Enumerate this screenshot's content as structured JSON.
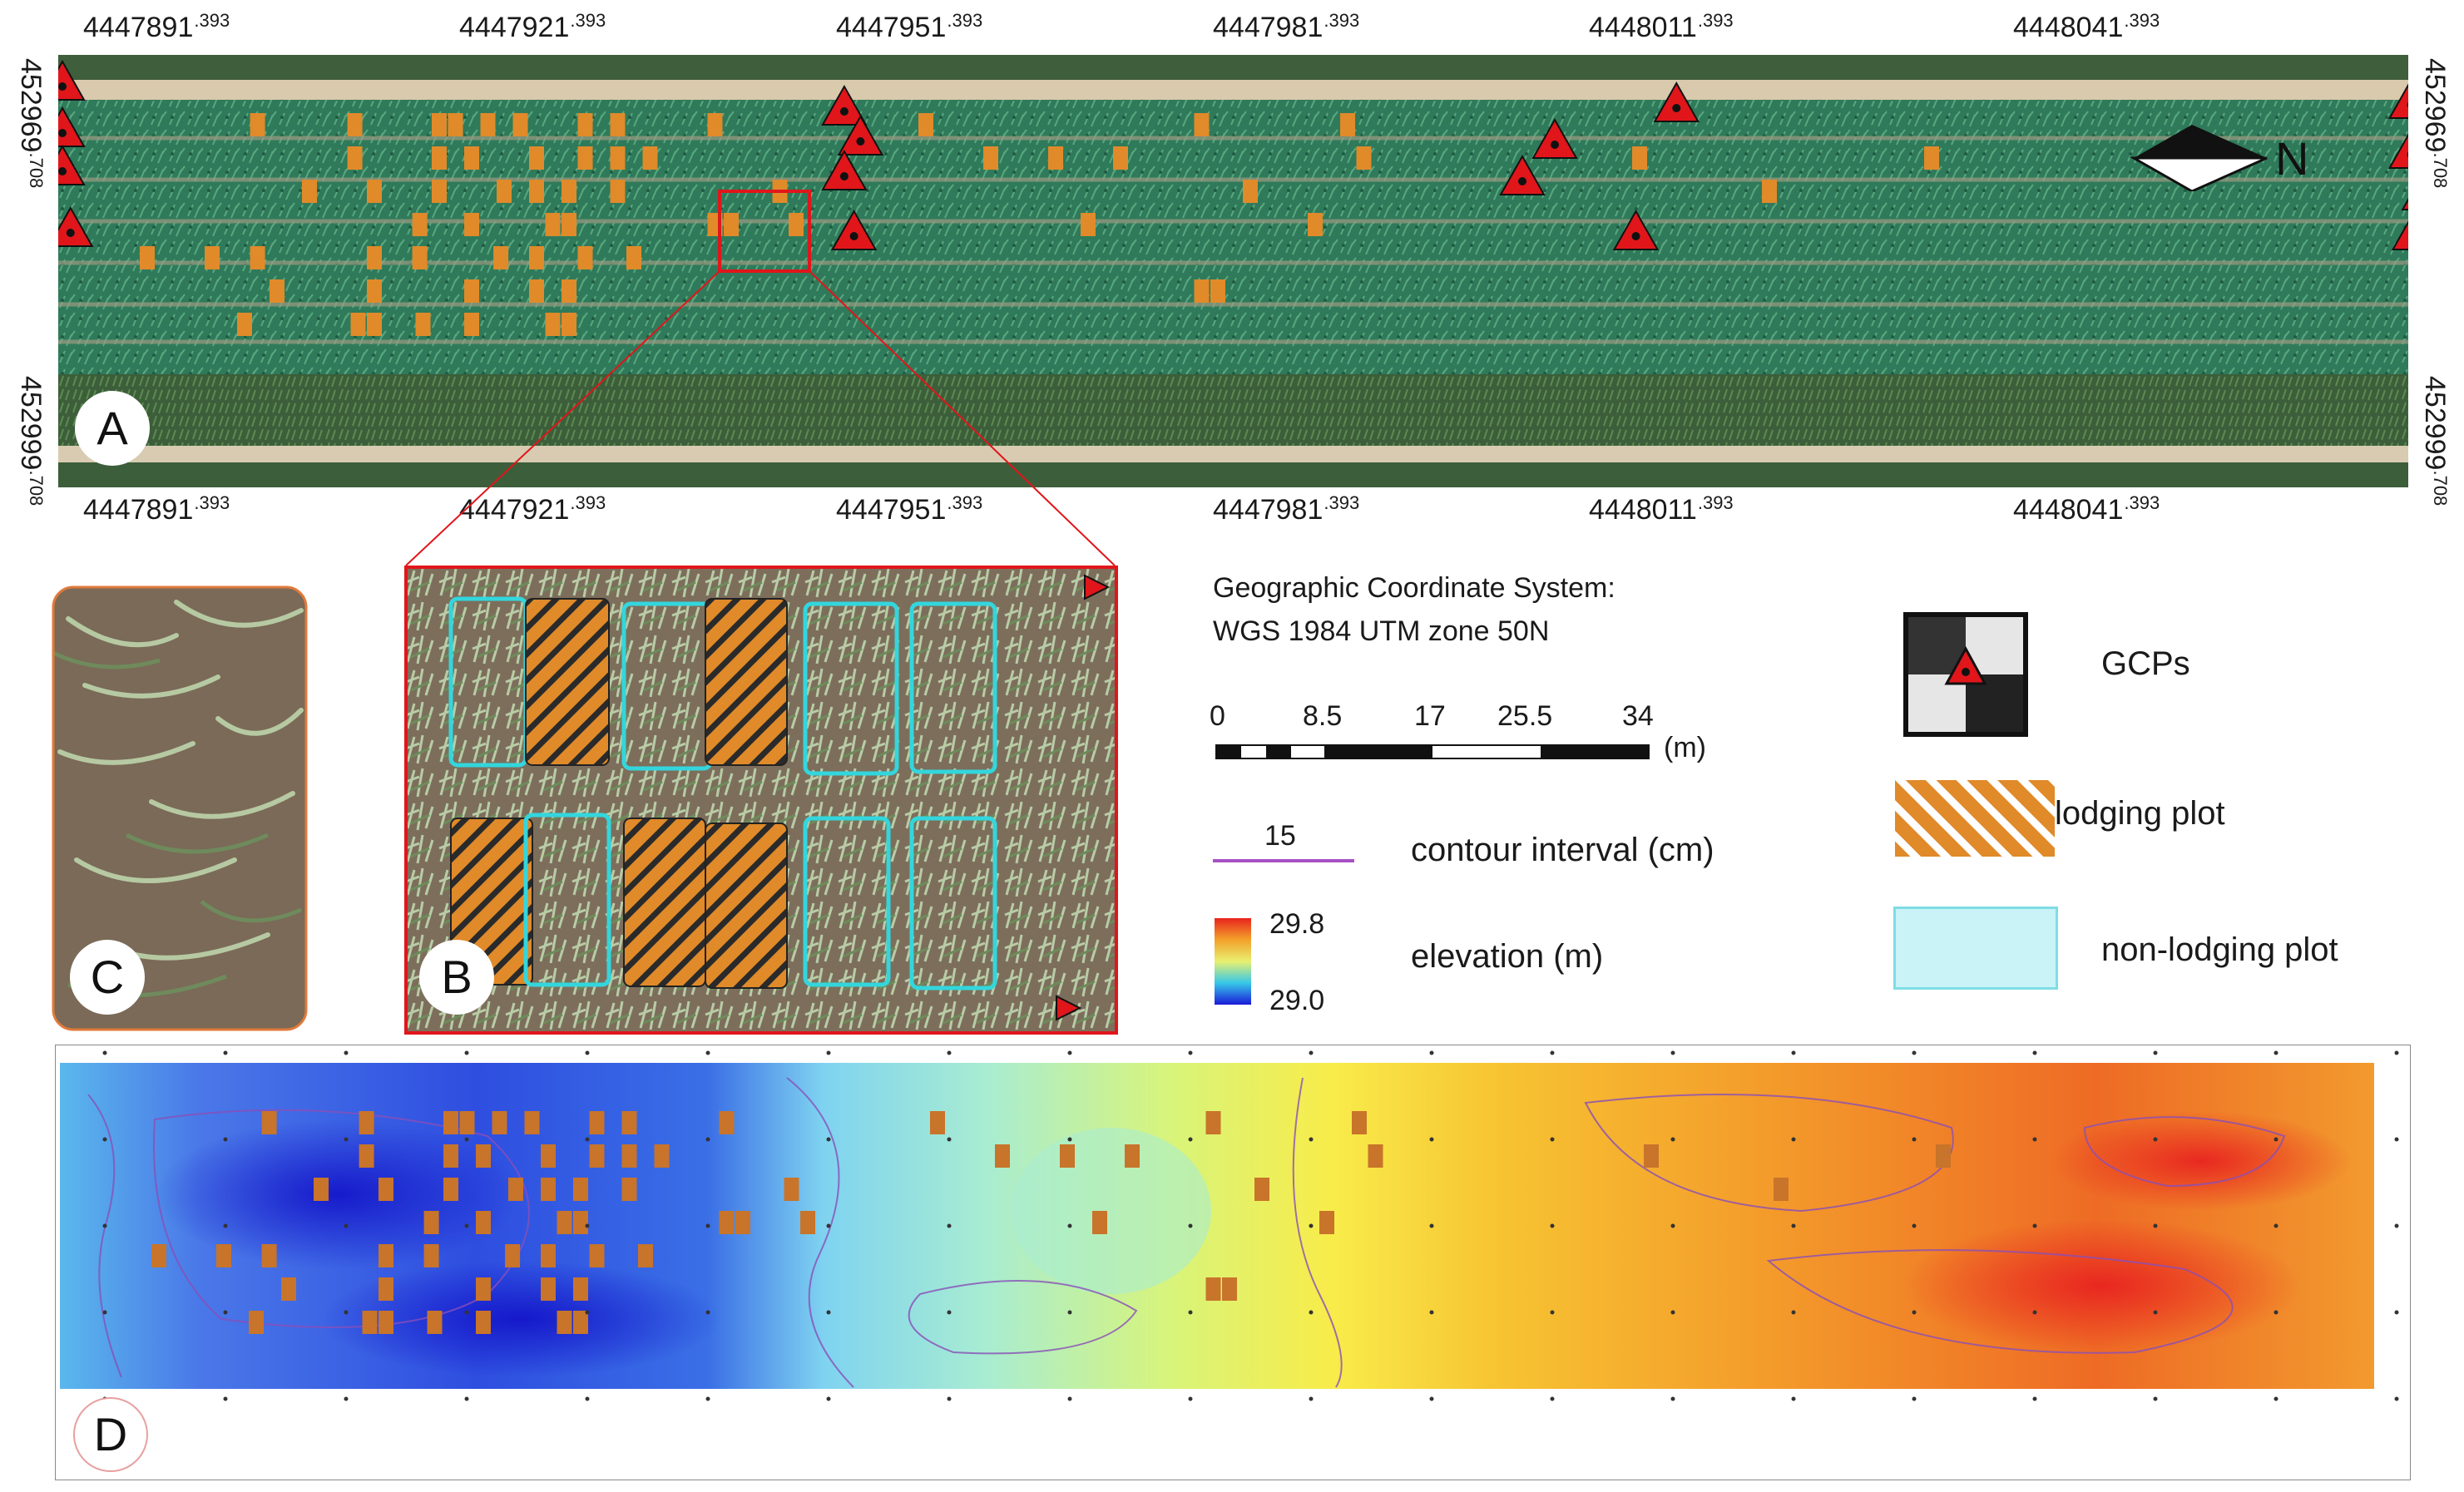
{
  "coords": {
    "top_x": [
      {
        "main": "4447891",
        "sup": ".393"
      },
      {
        "main": "4447921",
        "sup": ".393"
      },
      {
        "main": "4447951",
        "sup": ".393"
      },
      {
        "main": "4447981",
        "sup": ".393"
      },
      {
        "main": "4448011",
        "sup": ".393"
      },
      {
        "main": "4448041",
        "sup": ".393"
      }
    ],
    "bottom_x": [
      {
        "main": "4447891",
        "sup": ".393"
      },
      {
        "main": "4447921",
        "sup": ".393"
      },
      {
        "main": "4447951",
        "sup": ".393"
      },
      {
        "main": "4447981",
        "sup": ".393"
      },
      {
        "main": "4448011",
        "sup": ".393"
      },
      {
        "main": "4448041",
        "sup": ".393"
      }
    ],
    "y_top": {
      "main": "452969",
      "sup": ".708"
    },
    "y_bottom": {
      "main": "452999",
      "sup": ".708"
    }
  },
  "panels": {
    "a": "A",
    "b": "B",
    "c": "C",
    "d": "D"
  },
  "north": "N",
  "legend": {
    "crs_line1": "Geographic Coordinate System:",
    "crs_line2": "WGS 1984 UTM zone 50N",
    "scale_ticks": [
      "0",
      "8.5",
      "17",
      "25.5",
      "34"
    ],
    "scale_unit": "(m)",
    "contour_value": "15",
    "contour_label": "contour interval (cm)",
    "elev_max": "29.8",
    "elev_min": "29.0",
    "elev_label": "elevation (m)",
    "gcp_label": "GCPs",
    "lodging_label": "lodging plot",
    "nonlodging_label": "non-lodging plot"
  },
  "colors": {
    "lodging": "#e08a2a",
    "nonlodging": "#33d6dc",
    "gcp": "#e0161b",
    "contour": "#a651c4",
    "crop": "#2f7a5a",
    "soil": "#c9b79b"
  }
}
